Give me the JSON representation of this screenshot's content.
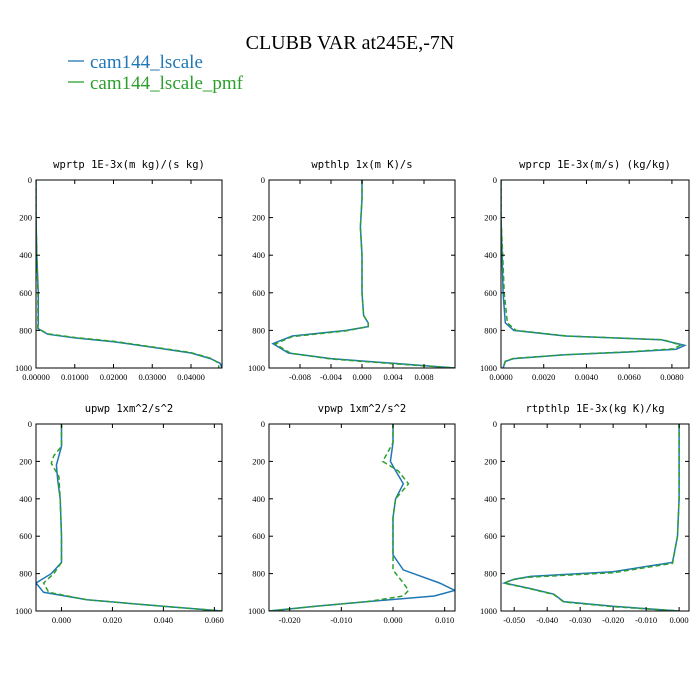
{
  "figure": {
    "title": "CLUBB VAR at245E,-7N",
    "legend": [
      {
        "label": "cam144_lscale",
        "color": "#1f77b4",
        "style": "solid"
      },
      {
        "label": "cam144_lscale_pmf",
        "color": "#2ca02c",
        "style": "dashed"
      }
    ]
  },
  "chart_data": [
    {
      "type": "line",
      "title": "wprtp  1E-3x(m kg)/(s kg)",
      "xlim": [
        0,
        0.048
      ],
      "xticks": [
        0,
        0.01,
        0.02,
        0.03,
        0.04
      ],
      "xtick_labels": [
        "0.00000",
        "0.01000",
        "0.02000",
        "0.03000",
        "0.04000"
      ],
      "ylim": [
        1000,
        0
      ],
      "yticks": [
        0,
        200,
        400,
        600,
        800,
        1000
      ],
      "ytick_labels": [
        "0",
        "200",
        "400",
        "600",
        "800",
        "1000"
      ],
      "series": [
        {
          "name": "cam144_lscale",
          "x": [
            0,
            0,
            0.0002,
            0.0006,
            0.0006,
            0.0005,
            0.003,
            0.01,
            0.02,
            0.03,
            0.04,
            0.045,
            0.0475,
            0.048
          ],
          "y": [
            0,
            200,
            400,
            600,
            760,
            790,
            820,
            840,
            860,
            890,
            920,
            950,
            975,
            1000
          ]
        },
        {
          "name": "cam144_lscale_pmf",
          "x": [
            0,
            0,
            0.0002,
            0.0005,
            0.0005,
            0.0005,
            0.003,
            0.01,
            0.02,
            0.03,
            0.04,
            0.045,
            0.047,
            0.0472
          ],
          "y": [
            0,
            200,
            400,
            600,
            760,
            790,
            818,
            838,
            858,
            888,
            918,
            948,
            972,
            1000
          ]
        }
      ]
    },
    {
      "type": "line",
      "title": "wpthlp  1x(m K)/s",
      "xlim": [
        -0.012,
        0.012
      ],
      "xticks": [
        -0.008,
        -0.004,
        0,
        0.004,
        0.008
      ],
      "xtick_labels": [
        "-0.008",
        "-0.004",
        "0.000",
        "0.004",
        "0.008"
      ],
      "ylim": [
        1000,
        0
      ],
      "yticks": [
        0,
        200,
        400,
        600,
        800,
        1000
      ],
      "ytick_labels": [
        "0",
        "200",
        "400",
        "600",
        "800",
        "1000"
      ],
      "series": [
        {
          "name": "cam144_lscale",
          "x": [
            0,
            0,
            -0.0002,
            0,
            0,
            0.0002,
            0.0008,
            0.0008,
            -0.002,
            -0.009,
            -0.0115,
            -0.0095,
            -0.004,
            0.004,
            0.012
          ],
          "y": [
            0,
            100,
            250,
            400,
            600,
            720,
            760,
            780,
            800,
            830,
            870,
            920,
            950,
            975,
            1000
          ]
        },
        {
          "name": "cam144_lscale_pmf",
          "x": [
            0,
            0,
            -0.0002,
            0,
            0,
            0.0002,
            0.0008,
            0.0008,
            -0.002,
            -0.009,
            -0.0112,
            -0.0092,
            -0.004,
            0.004,
            0.012
          ],
          "y": [
            0,
            100,
            250,
            400,
            600,
            720,
            760,
            780,
            802,
            833,
            872,
            922,
            952,
            977,
            1000
          ]
        }
      ]
    },
    {
      "type": "line",
      "title": "wprcp  1E-3x(m/s) (kg/kg)",
      "xlim": [
        0,
        0.0088
      ],
      "xticks": [
        0,
        0.002,
        0.004,
        0.006,
        0.008
      ],
      "xtick_labels": [
        "0.0000",
        "0.0020",
        "0.0040",
        "0.0060",
        "0.0080"
      ],
      "ylim": [
        1000,
        0
      ],
      "yticks": [
        0,
        200,
        400,
        600,
        800,
        1000
      ],
      "ytick_labels": [
        "0",
        "200",
        "400",
        "600",
        "800",
        "1000"
      ],
      "series": [
        {
          "name": "cam144_lscale",
          "x": [
            0,
            0,
            5e-05,
            0.0001,
            0.0002,
            0.0006,
            0.003,
            0.0075,
            0.0086,
            0.0082,
            0.006,
            0.003,
            0.0006,
            0.0002,
            0.0001
          ],
          "y": [
            0,
            200,
            400,
            600,
            760,
            800,
            830,
            850,
            880,
            900,
            915,
            930,
            950,
            965,
            1000
          ]
        },
        {
          "name": "cam144_lscale_pmf",
          "x": [
            0,
            0,
            8e-05,
            0.00015,
            0.0003,
            0.0007,
            0.0031,
            0.0076,
            0.0084,
            0.0081,
            0.006,
            0.003,
            0.0006,
            0.0002,
            0.0001
          ],
          "y": [
            0,
            200,
            400,
            600,
            760,
            800,
            830,
            850,
            878,
            898,
            914,
            929,
            949,
            964,
            1000
          ]
        }
      ]
    },
    {
      "type": "line",
      "title": "upwp  1xm^2/s^2",
      "xlim": [
        -0.01,
        0.063
      ],
      "xticks": [
        0,
        0.02,
        0.04,
        0.06
      ],
      "xtick_labels": [
        "0.000",
        "0.020",
        "0.040",
        "0.060"
      ],
      "ylim": [
        1000,
        0
      ],
      "yticks": [
        0,
        200,
        400,
        600,
        800,
        1000
      ],
      "ytick_labels": [
        "0",
        "200",
        "400",
        "600",
        "800",
        "1000"
      ],
      "series": [
        {
          "name": "cam144_lscale",
          "x": [
            0,
            0,
            -0.001,
            -0.002,
            -0.0015,
            -0.0005,
            0,
            0,
            -0.004,
            -0.01,
            -0.007,
            0.01,
            0.04,
            0.063
          ],
          "y": [
            0,
            120,
            170,
            220,
            300,
            400,
            600,
            740,
            800,
            850,
            900,
            940,
            975,
            1000
          ]
        },
        {
          "name": "cam144_lscale_pmf",
          "x": [
            0,
            0,
            -0.003,
            -0.004,
            -0.001,
            -0.0005,
            0,
            0,
            -0.003,
            -0.007,
            -0.005,
            0.01,
            0.04,
            0.063
          ],
          "y": [
            0,
            120,
            170,
            210,
            280,
            400,
            600,
            740,
            800,
            850,
            900,
            940,
            975,
            1000
          ]
        }
      ]
    },
    {
      "type": "line",
      "title": "vpwp  1xm^2/s^2",
      "xlim": [
        -0.024,
        0.012
      ],
      "xticks": [
        -0.02,
        -0.01,
        0,
        0.01
      ],
      "xtick_labels": [
        "-0.020",
        "-0.010",
        "0.000",
        "0.010"
      ],
      "ylim": [
        1000,
        0
      ],
      "yticks": [
        0,
        200,
        400,
        600,
        800,
        1000
      ],
      "ytick_labels": [
        "0",
        "200",
        "400",
        "600",
        "800",
        "1000"
      ],
      "series": [
        {
          "name": "cam144_lscale",
          "x": [
            0,
            0,
            -0.0005,
            0.0005,
            0.002,
            0.0005,
            0,
            0,
            0.002,
            0.009,
            0.012,
            0.008,
            -0.005,
            -0.015,
            -0.024
          ],
          "y": [
            0,
            100,
            200,
            250,
            320,
            400,
            500,
            700,
            780,
            850,
            890,
            920,
            950,
            975,
            1000
          ]
        },
        {
          "name": "cam144_lscale_pmf",
          "x": [
            0,
            0,
            -0.002,
            0.001,
            0.003,
            0.0005,
            0,
            0,
            0,
            0.002,
            0.003,
            0.002,
            -0.005,
            -0.015,
            -0.024
          ],
          "y": [
            0,
            100,
            200,
            250,
            320,
            400,
            500,
            700,
            780,
            850,
            890,
            920,
            950,
            975,
            1000
          ]
        }
      ]
    },
    {
      "type": "line",
      "title": "rtpthlp  1E-3x(kg K)/kg",
      "xlim": [
        -0.054,
        0.003
      ],
      "xticks": [
        -0.05,
        -0.04,
        -0.03,
        -0.02,
        -0.01,
        0
      ],
      "xtick_labels": [
        "-0.050",
        "-0.040",
        "-0.030",
        "-0.020",
        "-0.010",
        "0.000"
      ],
      "ylim": [
        1000,
        0
      ],
      "yticks": [
        0,
        200,
        400,
        600,
        800,
        1000
      ],
      "ytick_labels": [
        "0",
        "200",
        "400",
        "600",
        "800",
        "1000"
      ],
      "series": [
        {
          "name": "cam144_lscale",
          "x": [
            0,
            0,
            0,
            -0.0005,
            -0.002,
            -0.02,
            -0.045,
            -0.05,
            -0.053,
            -0.045,
            -0.038,
            -0.035,
            -0.02,
            0
          ],
          "y": [
            0,
            200,
            400,
            600,
            740,
            790,
            815,
            830,
            850,
            880,
            910,
            950,
            975,
            1000
          ]
        },
        {
          "name": "cam144_lscale_pmf",
          "x": [
            0,
            0,
            0,
            -0.0005,
            -0.002,
            -0.02,
            -0.046,
            -0.051,
            -0.053,
            -0.045,
            -0.038,
            -0.035,
            -0.02,
            0
          ],
          "y": [
            0,
            200,
            400,
            600,
            745,
            795,
            820,
            834,
            852,
            882,
            912,
            952,
            977,
            1000
          ]
        }
      ]
    }
  ]
}
